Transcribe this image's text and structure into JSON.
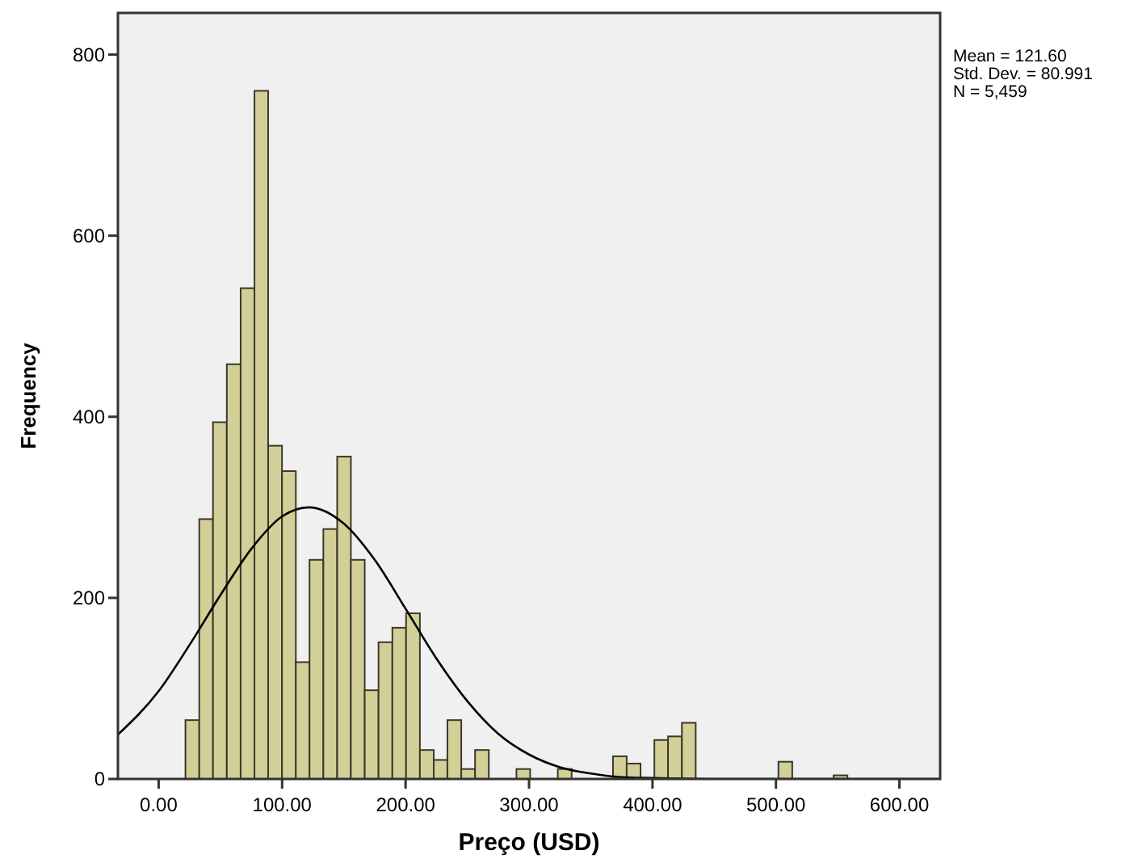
{
  "chart_data": {
    "type": "histogram",
    "xlabel": "Preço (USD)",
    "ylabel": "Frequency",
    "bins": [
      21.7,
      32.9,
      44.0,
      55.2,
      66.4,
      77.6,
      88.7,
      99.9,
      111.1,
      122.2,
      133.4,
      144.6,
      155.7,
      166.9,
      178.1,
      189.3,
      200.4,
      211.6,
      222.8,
      233.9,
      245.1,
      256.3,
      267.4,
      278.6,
      289.8,
      300.9,
      312.1,
      323.3,
      334.5,
      345.6,
      356.8,
      368.0,
      379.1,
      390.3,
      401.5,
      412.6,
      423.8,
      435.0,
      446.2,
      457.3,
      468.5,
      479.7,
      490.8,
      502.0,
      513.2,
      524.3,
      535.5,
      546.7,
      557.9
    ],
    "series": [
      {
        "type": "histogram",
        "color": "#d3cf98",
        "values": [
          65,
          287,
          394,
          458,
          542,
          760,
          368,
          340,
          129,
          242,
          276,
          356,
          242,
          98,
          151,
          167,
          183,
          32,
          21,
          65,
          11,
          32,
          0,
          0,
          11,
          0,
          0,
          11,
          0,
          0,
          0,
          25,
          17,
          0,
          43,
          47,
          62,
          0,
          0,
          0,
          0,
          0,
          0,
          19,
          0,
          0,
          0,
          4
        ]
      },
      {
        "type": "line",
        "color": "#000000",
        "x": [
          -33,
          0,
          25,
          50,
          75,
          100,
          121.6,
          150,
          175,
          200,
          225,
          250,
          275,
          300,
          325,
          350,
          375,
          400,
          450,
          500,
          550,
          633
        ],
        "values": [
          49,
          97,
          148,
          203,
          254,
          290,
          300,
          282,
          242,
          188,
          133,
          86,
          50,
          27,
          13,
          6,
          2,
          1,
          0,
          0,
          0,
          0
        ]
      }
    ],
    "xlim": [
      -33,
      633
    ],
    "ylim": [
      0,
      846
    ],
    "xticks": [
      {
        "value": 0,
        "label": "0.00"
      },
      {
        "value": 100,
        "label": "100.00"
      },
      {
        "value": 200,
        "label": "200.00"
      },
      {
        "value": 300,
        "label": "300.00"
      },
      {
        "value": 400,
        "label": "400.00"
      },
      {
        "value": 500,
        "label": "500.00"
      },
      {
        "value": 600,
        "label": "600.00"
      }
    ],
    "yticks": [
      0,
      200,
      400,
      600,
      800
    ],
    "annotations": [
      "Mean = 121.60",
      "Std. Dev. = 80.991",
      "N = 5,459"
    ]
  }
}
